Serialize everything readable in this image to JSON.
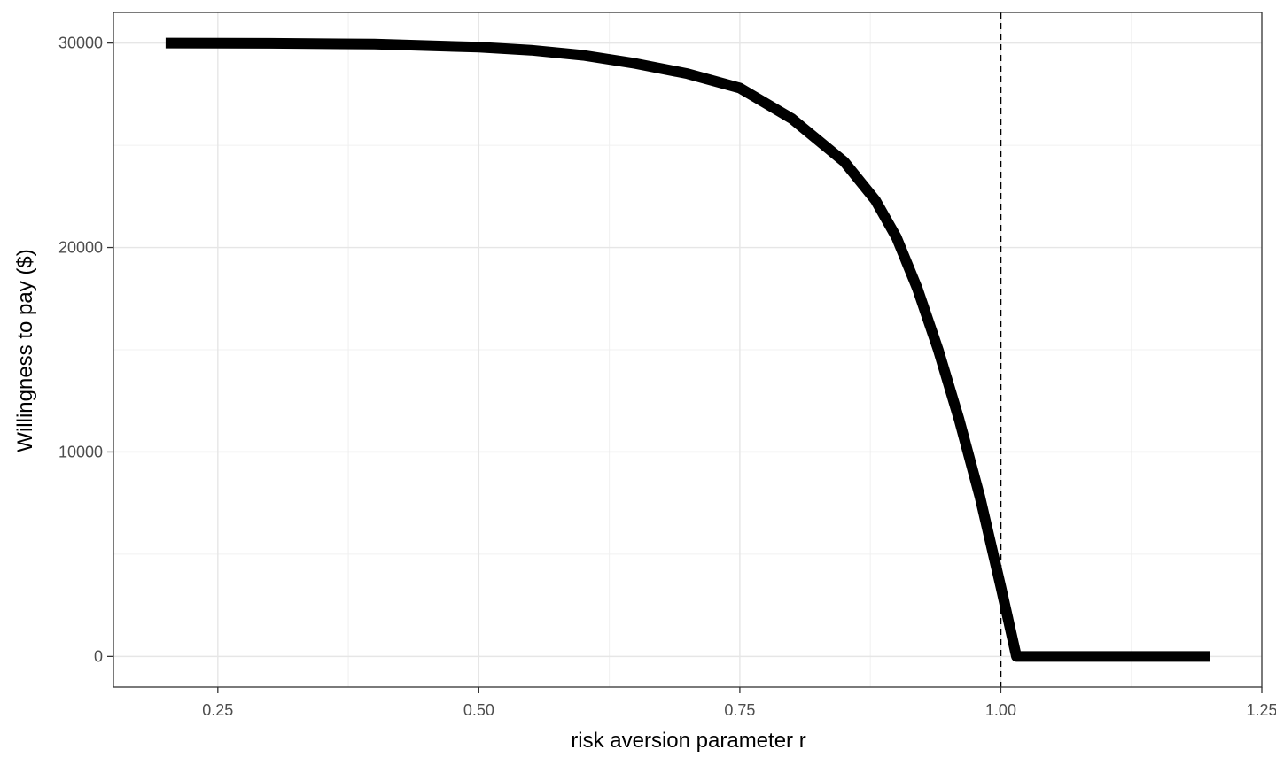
{
  "chart_data": {
    "type": "line",
    "title": "",
    "xlabel": "risk aversion parameter r",
    "ylabel": "Willingness to pay ($)",
    "xlim": [
      0.15,
      1.25
    ],
    "ylim": [
      -1500,
      31500
    ],
    "x_ticks": [
      0.25,
      0.5,
      0.75,
      1.0,
      1.25
    ],
    "x_tick_labels": [
      "0.25",
      "0.50",
      "0.75",
      "1.00",
      "1.25"
    ],
    "y_ticks": [
      0,
      10000,
      20000,
      30000
    ],
    "y_tick_labels": [
      "0",
      "10000",
      "20000",
      "30000"
    ],
    "grid": true,
    "legend": "none",
    "reference_lines": [
      {
        "axis": "x",
        "value": 1.0,
        "style": "dashed",
        "color": "#000000"
      }
    ],
    "series": [
      {
        "color": "#000000",
        "x": [
          0.2,
          0.3,
          0.4,
          0.5,
          0.55,
          0.6,
          0.65,
          0.7,
          0.75,
          0.8,
          0.85,
          0.88,
          0.9,
          0.92,
          0.94,
          0.96,
          0.98,
          1.0,
          1.015,
          1.05,
          1.1,
          1.15,
          1.2
        ],
        "y": [
          30000,
          29990,
          29950,
          29800,
          29650,
          29400,
          29000,
          28500,
          27800,
          26300,
          24200,
          22300,
          20500,
          18000,
          15000,
          11600,
          7800,
          3400,
          0,
          0,
          0,
          0,
          0
        ]
      }
    ]
  }
}
